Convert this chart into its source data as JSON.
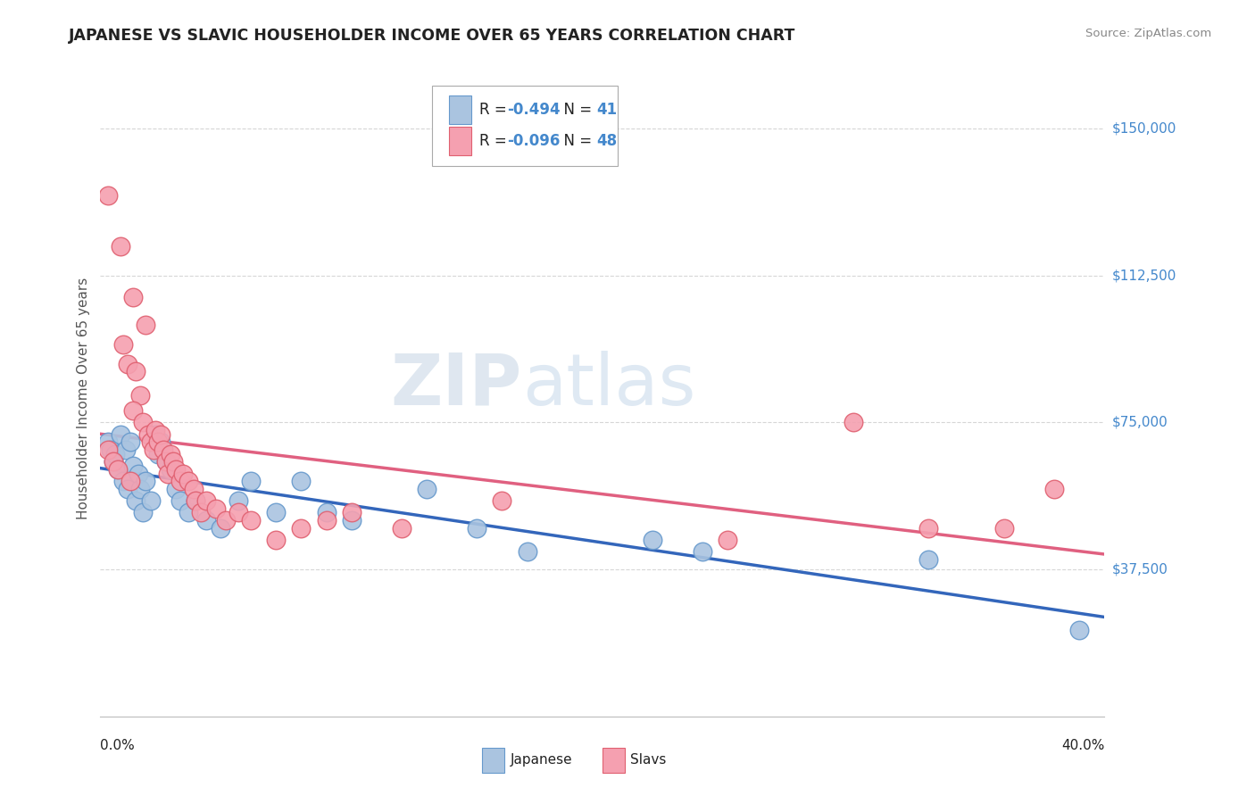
{
  "title": "JAPANESE VS SLAVIC HOUSEHOLDER INCOME OVER 65 YEARS CORRELATION CHART",
  "source_text": "Source: ZipAtlas.com",
  "ylabel": "Householder Income Over 65 years",
  "xlim": [
    0.0,
    0.4
  ],
  "ylim": [
    0,
    162500
  ],
  "xtick_values": [
    0.0,
    0.4
  ],
  "xtick_labels": [
    "0.0%",
    "40.0%"
  ],
  "ytick_values": [
    37500,
    75000,
    112500,
    150000
  ],
  "ytick_labels": [
    "$37,500",
    "$75,000",
    "$112,500",
    "$150,000"
  ],
  "japanese_color": "#aac4e0",
  "slavs_color": "#f5a0b0",
  "japanese_edge_color": "#6699cc",
  "slavs_edge_color": "#e06070",
  "trend_japanese_color": "#3366bb",
  "trend_slavs_color": "#e06080",
  "background_color": "#ffffff",
  "grid_color": "#cccccc",
  "title_color": "#222222",
  "axis_label_color": "#555555",
  "tick_color_x": "#222222",
  "tick_color_y": "#4488cc",
  "watermark_zip_color": "#c0ccd8",
  "watermark_atlas_color": "#b0c8e0",
  "legend_box_color": "#aaaaaa",
  "legend_r_color": "#4488cc",
  "legend_n_color": "#4488cc",
  "japanese_R": "-0.494",
  "japanese_N": "41",
  "slavs_R": "-0.096",
  "slavs_N": "48",
  "japanese_points": [
    [
      0.003,
      70000
    ],
    [
      0.004,
      68000
    ],
    [
      0.005,
      65000
    ],
    [
      0.006,
      67000
    ],
    [
      0.007,
      63000
    ],
    [
      0.008,
      72000
    ],
    [
      0.009,
      60000
    ],
    [
      0.01,
      68000
    ],
    [
      0.011,
      58000
    ],
    [
      0.012,
      70000
    ],
    [
      0.013,
      64000
    ],
    [
      0.014,
      55000
    ],
    [
      0.015,
      62000
    ],
    [
      0.016,
      58000
    ],
    [
      0.017,
      52000
    ],
    [
      0.018,
      60000
    ],
    [
      0.02,
      55000
    ],
    [
      0.022,
      72000
    ],
    [
      0.023,
      67000
    ],
    [
      0.024,
      70000
    ],
    [
      0.026,
      65000
    ],
    [
      0.028,
      63000
    ],
    [
      0.03,
      58000
    ],
    [
      0.032,
      55000
    ],
    [
      0.035,
      52000
    ],
    [
      0.038,
      55000
    ],
    [
      0.042,
      50000
    ],
    [
      0.048,
      48000
    ],
    [
      0.055,
      55000
    ],
    [
      0.06,
      60000
    ],
    [
      0.07,
      52000
    ],
    [
      0.08,
      60000
    ],
    [
      0.09,
      52000
    ],
    [
      0.1,
      50000
    ],
    [
      0.13,
      58000
    ],
    [
      0.15,
      48000
    ],
    [
      0.17,
      42000
    ],
    [
      0.22,
      45000
    ],
    [
      0.24,
      42000
    ],
    [
      0.33,
      40000
    ],
    [
      0.39,
      22000
    ]
  ],
  "slavs_points": [
    [
      0.003,
      133000
    ],
    [
      0.008,
      120000
    ],
    [
      0.013,
      107000
    ],
    [
      0.018,
      100000
    ],
    [
      0.009,
      95000
    ],
    [
      0.011,
      90000
    ],
    [
      0.014,
      88000
    ],
    [
      0.016,
      82000
    ],
    [
      0.013,
      78000
    ],
    [
      0.017,
      75000
    ],
    [
      0.019,
      72000
    ],
    [
      0.02,
      70000
    ],
    [
      0.021,
      68000
    ],
    [
      0.022,
      73000
    ],
    [
      0.023,
      70000
    ],
    [
      0.024,
      72000
    ],
    [
      0.025,
      68000
    ],
    [
      0.026,
      65000
    ],
    [
      0.027,
      62000
    ],
    [
      0.028,
      67000
    ],
    [
      0.029,
      65000
    ],
    [
      0.03,
      63000
    ],
    [
      0.032,
      60000
    ],
    [
      0.033,
      62000
    ],
    [
      0.035,
      60000
    ],
    [
      0.037,
      58000
    ],
    [
      0.038,
      55000
    ],
    [
      0.04,
      52000
    ],
    [
      0.042,
      55000
    ],
    [
      0.046,
      53000
    ],
    [
      0.05,
      50000
    ],
    [
      0.055,
      52000
    ],
    [
      0.06,
      50000
    ],
    [
      0.07,
      45000
    ],
    [
      0.08,
      48000
    ],
    [
      0.09,
      50000
    ],
    [
      0.1,
      52000
    ],
    [
      0.12,
      48000
    ],
    [
      0.16,
      55000
    ],
    [
      0.25,
      45000
    ],
    [
      0.3,
      75000
    ],
    [
      0.33,
      48000
    ],
    [
      0.36,
      48000
    ],
    [
      0.38,
      58000
    ],
    [
      0.003,
      68000
    ],
    [
      0.005,
      65000
    ],
    [
      0.007,
      63000
    ],
    [
      0.012,
      60000
    ]
  ]
}
